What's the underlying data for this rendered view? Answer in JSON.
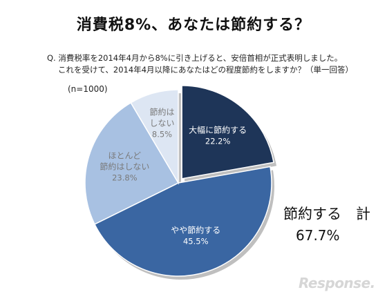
{
  "chart_data": {
    "type": "pie",
    "title": "消費税8%、あなたは節約する？",
    "question": [
      "Q. 消費税率を2014年4月から8%に引き上げると、安倍首相が正式表明しました。",
      "これを受けて、2014年4月以降にあなたはどの程度節約をしますか？（単一回答）"
    ],
    "sample": "(n=1000)",
    "slices": [
      {
        "label": [
          "大幅に節約する"
        ],
        "value": 22.2,
        "display": "22.2%",
        "color": "#1e3558",
        "text_color": "#ffffff"
      },
      {
        "label": [
          "やや節約する"
        ],
        "value": 45.5,
        "display": "45.5%",
        "color": "#3a66a2",
        "text_color": "#ffffff"
      },
      {
        "label": [
          "ほとんど",
          "節約はしない"
        ],
        "value": 23.8,
        "display": "23.8%",
        "color": "#a8c1e2",
        "text_color": "#7a7a7a"
      },
      {
        "label": [
          "節約は",
          "しない"
        ],
        "value": 8.5,
        "display": "8.5%",
        "color": "#dde6f3",
        "text_color": "#7a7a7a"
      }
    ],
    "summary": {
      "label": "節約する　計",
      "value": "67.7%"
    }
  },
  "watermark": "Response."
}
